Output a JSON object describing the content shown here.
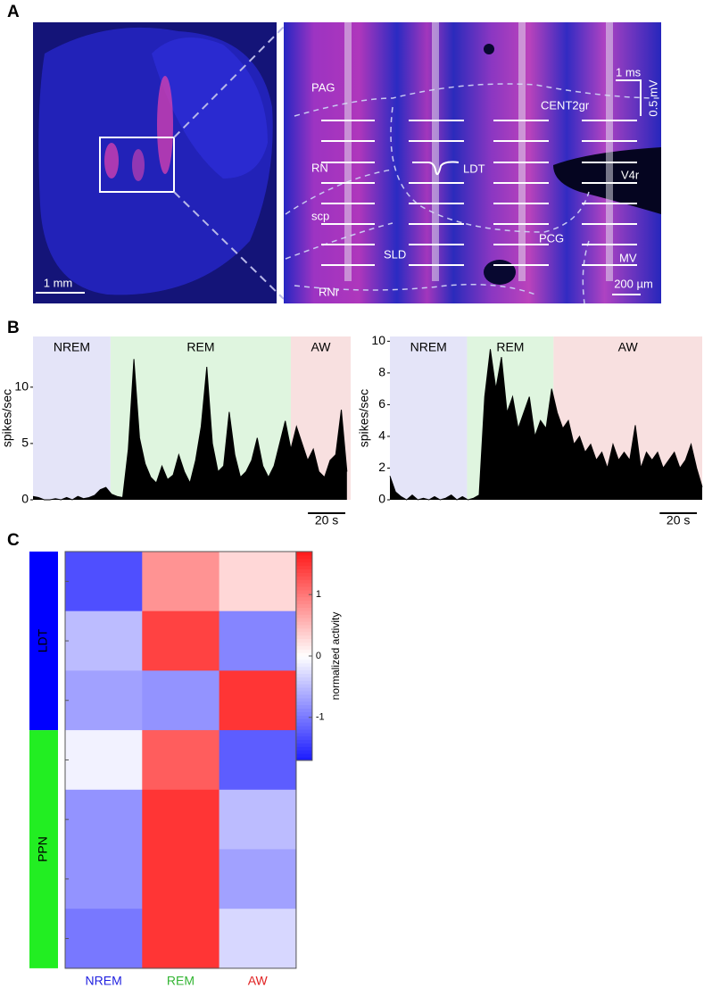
{
  "panel_labels": [
    "A",
    "B",
    "C"
  ],
  "panel_a": {
    "overview_scale": "1 mm",
    "detail_scale": "200 µm",
    "waveform_scale_time": "1 ms",
    "waveform_scale_voltage": "0.5 mV",
    "regions": [
      "PAG",
      "RN",
      "scp",
      "RNr",
      "SLD",
      "LDT",
      "PCG",
      "CENT2gr",
      "V4r",
      "MV"
    ]
  },
  "chart_data": [
    {
      "type": "area",
      "y_label": "spikes/sec",
      "color": "#000000",
      "xlim": [
        0,
        170
      ],
      "ylim": [
        0,
        14.5
      ],
      "yticks": [
        0,
        5,
        10
      ],
      "states": [
        {
          "name": "NREM",
          "color": "#e4e4f8",
          "start": 0,
          "end": 41.5
        },
        {
          "name": "REM",
          "color": "#dff5df",
          "start": 41.5,
          "end": 138
        },
        {
          "name": "AW",
          "color": "#f8e0e0",
          "start": 138,
          "end": 170
        }
      ],
      "scale_bar": {
        "value": 20,
        "label": "20 s"
      },
      "x": [
        0,
        3,
        6,
        9,
        12,
        15,
        18,
        21,
        24,
        27,
        30,
        33,
        36,
        39,
        42,
        45,
        48,
        51,
        54,
        57,
        60,
        63,
        66,
        69,
        72,
        75,
        78,
        81,
        84,
        87,
        90,
        93,
        96,
        99,
        102,
        105,
        108,
        111,
        114,
        117,
        120,
        123,
        126,
        129,
        132,
        135,
        138,
        141,
        144,
        147,
        150,
        153,
        156,
        159,
        162,
        165,
        168
      ],
      "values": [
        0.3,
        0.2,
        0,
        0,
        0.1,
        0,
        0.2,
        0,
        0.3,
        0.1,
        0.2,
        0.4,
        0.9,
        1.1,
        0.5,
        0.3,
        0.2,
        4.5,
        12.5,
        5.5,
        3.2,
        2.0,
        1.5,
        3.0,
        1.8,
        2.2,
        4.0,
        2.5,
        1.5,
        3.5,
        6.5,
        11.8,
        5.0,
        2.5,
        3.0,
        7.8,
        4.0,
        2.0,
        2.5,
        3.5,
        5.5,
        3.0,
        2.0,
        3.0,
        5.0,
        7.0,
        4.5,
        6.5,
        5.0,
        3.5,
        4.5,
        2.5,
        2.0,
        3.5,
        4.0,
        8.0,
        2.5
      ]
    },
    {
      "type": "area",
      "y_label": "spikes/sec",
      "color": "#000000",
      "xlim": [
        0,
        168
      ],
      "ylim": [
        0,
        10.3
      ],
      "yticks": [
        0,
        2,
        4,
        6,
        8,
        10
      ],
      "states": [
        {
          "name": "NREM",
          "color": "#e4e4f8",
          "start": 0,
          "end": 41.5
        },
        {
          "name": "REM",
          "color": "#dff5df",
          "start": 41.5,
          "end": 88
        },
        {
          "name": "AW",
          "color": "#f8e0e0",
          "start": 88,
          "end": 168
        }
      ],
      "scale_bar": {
        "value": 20,
        "label": "20 s"
      },
      "x": [
        0,
        3,
        6,
        9,
        12,
        15,
        18,
        21,
        24,
        27,
        30,
        33,
        36,
        39,
        42,
        45,
        48,
        51,
        54,
        57,
        60,
        63,
        66,
        69,
        72,
        75,
        78,
        81,
        84,
        87,
        90,
        93,
        96,
        99,
        102,
        105,
        108,
        111,
        114,
        117,
        120,
        123,
        126,
        129,
        132,
        135,
        138,
        141,
        144,
        147,
        150,
        153,
        156,
        159,
        162,
        165,
        168
      ],
      "values": [
        1.5,
        0.5,
        0.2,
        0,
        0.3,
        0,
        0.1,
        0,
        0.2,
        0,
        0.1,
        0.3,
        0,
        0.2,
        0,
        0.1,
        0.3,
        6.5,
        9.5,
        7.0,
        9.0,
        5.5,
        6.5,
        4.5,
        5.5,
        6.5,
        4.0,
        5.0,
        4.5,
        7.0,
        5.5,
        4.5,
        5.0,
        3.5,
        4.0,
        3.0,
        3.5,
        2.5,
        3.0,
        2.0,
        3.5,
        2.5,
        3.0,
        2.5,
        4.7,
        2.0,
        3.0,
        2.5,
        3.0,
        2.0,
        2.5,
        3.0,
        2.0,
        2.5,
        3.5,
        2.0,
        0.8
      ]
    },
    {
      "type": "heatmap",
      "categories": [
        "NREM",
        "REM",
        "AW"
      ],
      "category_colors": [
        "#2020e0",
        "#33b533",
        "#e02020"
      ],
      "row_groups": [
        "LDT",
        "LDT",
        "LDT",
        "PPN",
        "PPN",
        "PPN",
        "PPN"
      ],
      "group_colors": {
        "LDT": "#0000ff",
        "PPN": "#22ee22"
      },
      "values": [
        [
          -1.3,
          0.8,
          0.3
        ],
        [
          -0.5,
          1.4,
          -0.9
        ],
        [
          -0.7,
          -0.8,
          1.5
        ],
        [
          -0.1,
          1.2,
          -1.2
        ],
        [
          -0.8,
          1.5,
          -0.5
        ],
        [
          -0.8,
          1.5,
          -0.7
        ],
        [
          -1.0,
          1.5,
          -0.3
        ]
      ],
      "colorbar": {
        "label": "normalized activity",
        "lim": [
          -1.7,
          1.7
        ],
        "ticks": [
          -1,
          0,
          1
        ]
      }
    }
  ]
}
